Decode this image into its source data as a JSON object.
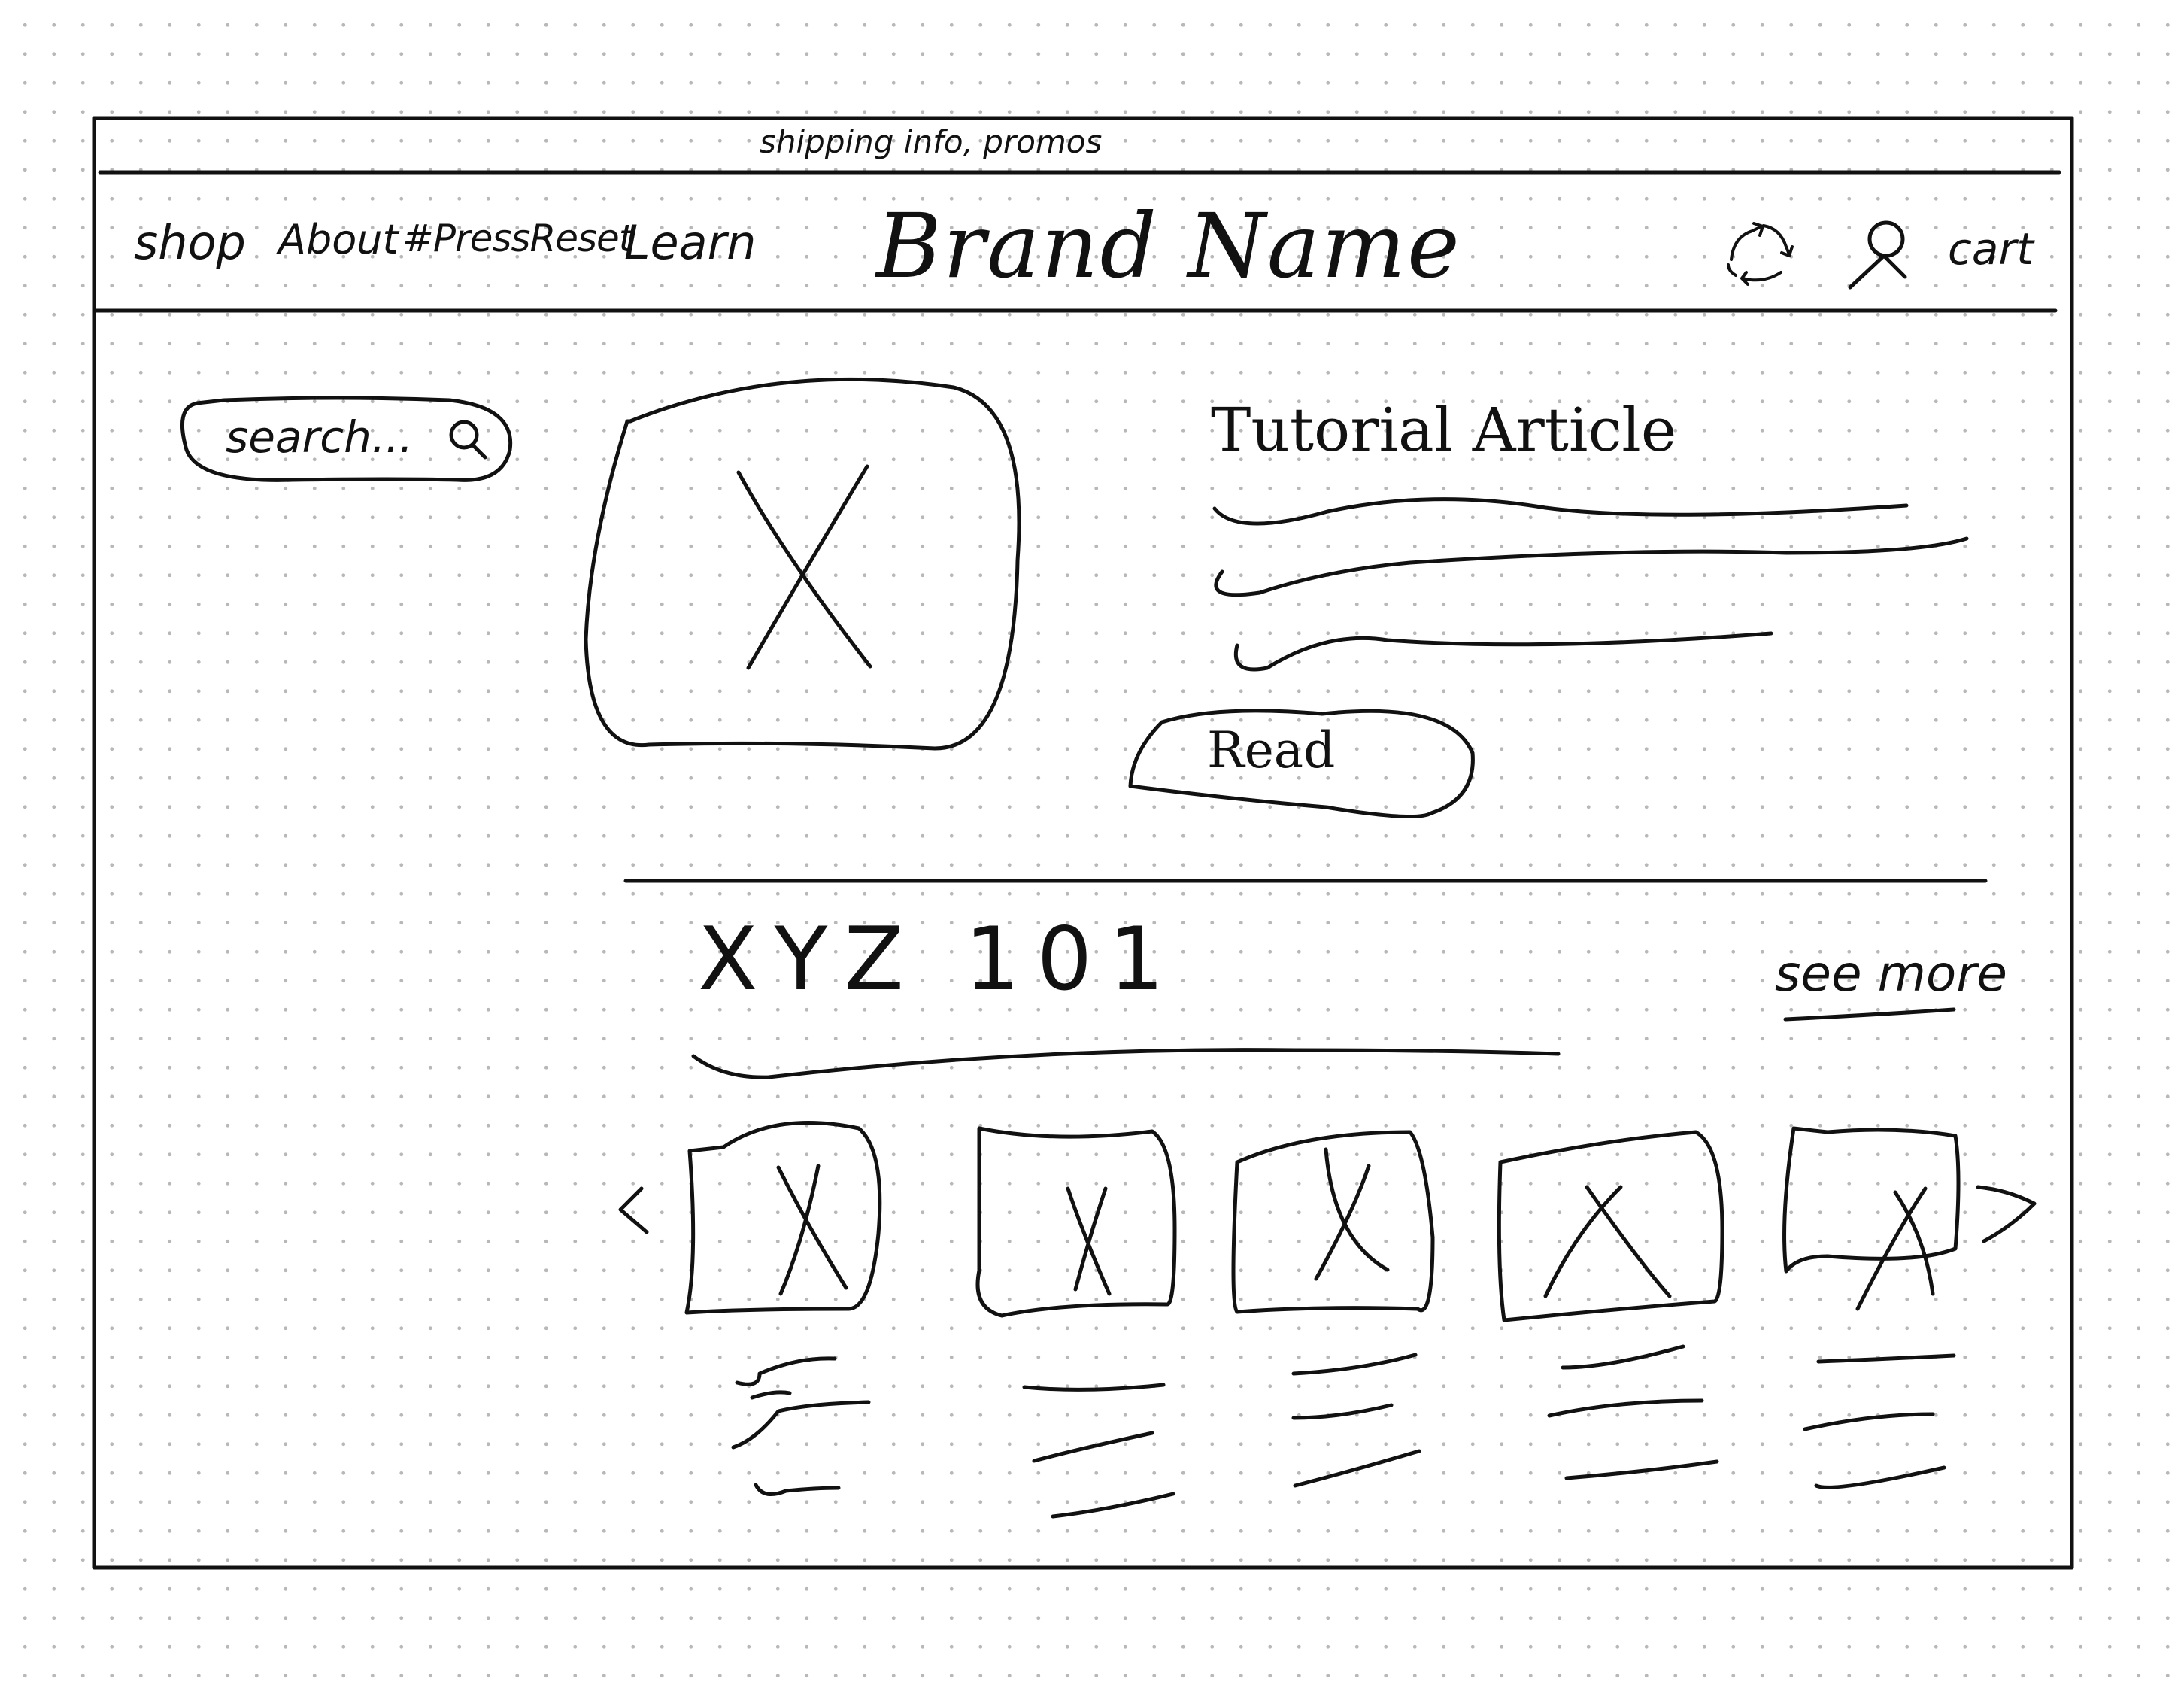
{
  "promo_bar": {
    "text": "shipping info, promos"
  },
  "header": {
    "nav": [
      {
        "label": "shop"
      },
      {
        "label": "About"
      },
      {
        "label": "#PressReset"
      },
      {
        "label": "Learn"
      }
    ],
    "brand": "Brand Name",
    "icons": [
      "recycle-icon",
      "account-icon"
    ],
    "cart_label": "cart"
  },
  "search": {
    "placeholder": "search...",
    "icon": "search-icon"
  },
  "featured": {
    "title": "Tutorial Article",
    "read_label": "Read"
  },
  "carousel": {
    "title": "XYZ 101",
    "see_more": "see more",
    "prev_icon": "chevron-left-icon",
    "next_icon": "chevron-right-icon",
    "item_count": 5
  }
}
